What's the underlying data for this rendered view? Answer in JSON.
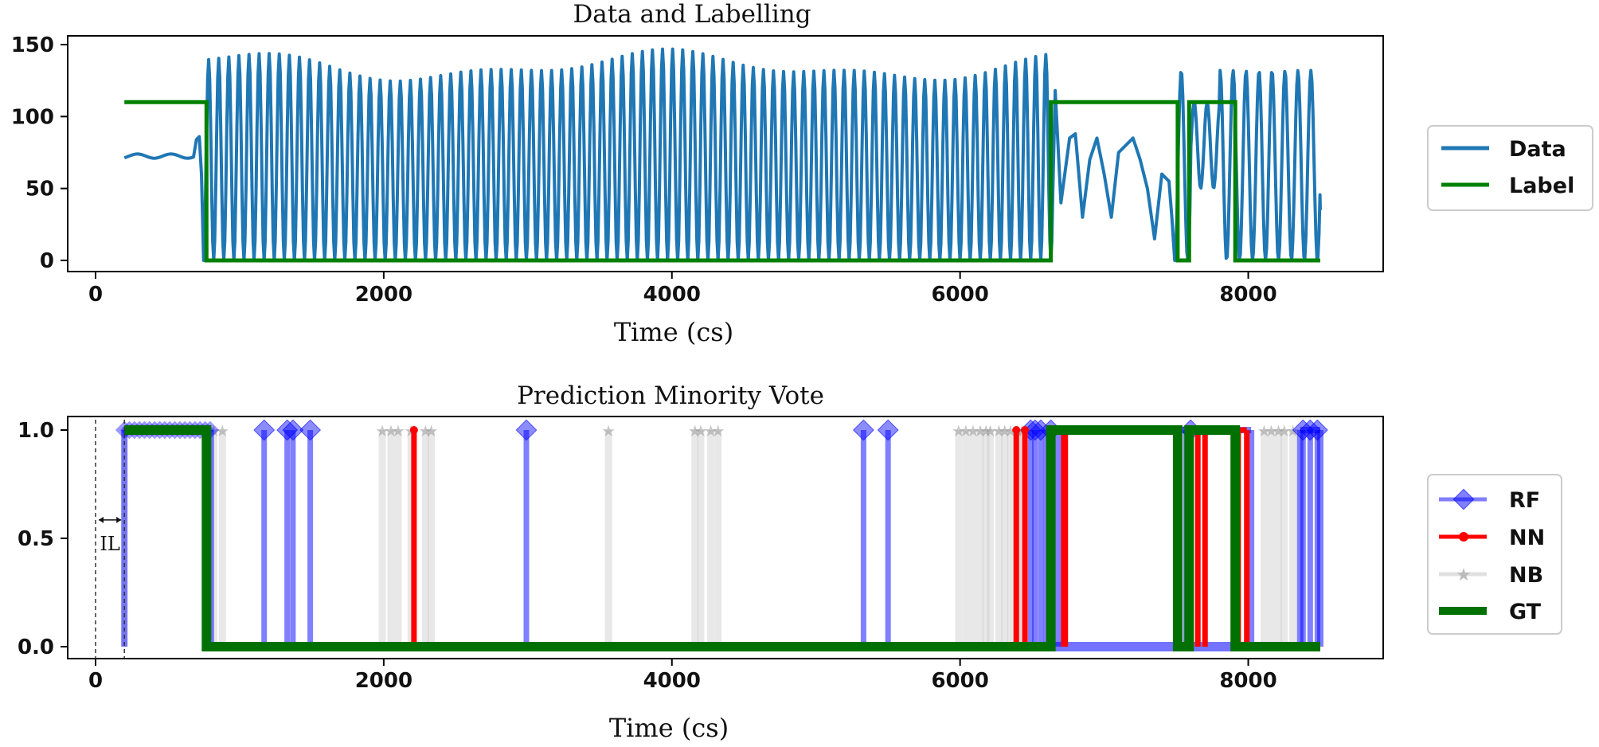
{
  "chart_data": [
    {
      "type": "line",
      "title": "Data and Labelling",
      "xlabel": "Time (cs)",
      "ylabel": "",
      "xlim": [
        -500,
        8800
      ],
      "ylim": [
        -8,
        155
      ],
      "x_ticks": [
        0,
        2000,
        4000,
        6000,
        8000
      ],
      "y_ticks": [
        0,
        50,
        100,
        150
      ],
      "legend_position": "right",
      "series": [
        {
          "name": "Data",
          "color": "#1f77b4",
          "description_points": {
            "flat_segment": {
              "x": [
                200,
                680
              ],
              "y": [
                72,
                75
              ]
            },
            "bump": {
              "x": [
                700,
                720
              ],
              "y": [
                83,
                86
              ]
            },
            "oscillation_1": {
              "x_range": [
                740,
                6700
              ],
              "period": 70,
              "min": 0,
              "max": [
                130,
                148
              ]
            },
            "irregular_segment": {
              "x": [
                6700,
                6760,
                6800,
                6850,
                6900,
                6950,
                7000,
                7050,
                7100,
                7150,
                7200,
                7250,
                7300,
                7350,
                7400,
                7450
              ],
              "y": [
                40,
                85,
                88,
                30,
                70,
                85,
                60,
                30,
                75,
                80,
                85,
                70,
                50,
                15,
                60,
                55
              ]
            },
            "oscillation_2": {
              "x_range": [
                7480,
                8500
              ],
              "period": 90,
              "min": 0,
              "max": 132
            }
          }
        },
        {
          "name": "Label",
          "color": "#008000",
          "x": [
            200,
            770,
            770,
            6630,
            6630,
            7510,
            7510,
            7590,
            7590,
            7910,
            7910,
            8500
          ],
          "y": [
            110,
            110,
            0,
            0,
            110,
            110,
            0,
            0,
            110,
            110,
            0,
            0
          ]
        }
      ]
    },
    {
      "type": "line",
      "title": "Prediction Minority Vote",
      "xlabel": "Time (cs)",
      "ylabel": "",
      "xlim": [
        -500,
        8800
      ],
      "ylim": [
        -0.06,
        1.06
      ],
      "x_ticks": [
        0,
        2000,
        4000,
        6000,
        8000
      ],
      "y_ticks": [
        0.0,
        0.5,
        1.0
      ],
      "y_tick_labels": [
        "0.0",
        "0.5",
        "1.0"
      ],
      "legend_position": "right",
      "annotation": {
        "text": "IL",
        "x_start": 0,
        "x_end": 200,
        "y": 0.53
      },
      "series": [
        {
          "name": "RF",
          "color": "#0000ff",
          "marker": "diamond",
          "spikes_to_one": [
            1170,
            1330,
            1370,
            1490,
            2990,
            5330,
            5500,
            6490,
            6520,
            6560,
            6630,
            7600,
            8380,
            8430,
            8480
          ],
          "one_regions": [
            [
              200,
              800
            ],
            [
              6600,
              6680
            ],
            [
              7510,
              7570
            ],
            [
              7600,
              8020
            ],
            [
              8360,
              8500
            ]
          ]
        },
        {
          "name": "NN",
          "color": "#ff0000",
          "marker": "dot",
          "spikes_to_one": [
            2210,
            6390,
            6450,
            6730,
            7650,
            7700
          ],
          "one_regions": [
            [
              6630,
              6720
            ],
            [
              7930,
              7990
            ]
          ]
        },
        {
          "name": "NB",
          "color": "#cccccc",
          "marker": "star",
          "spikes_to_one": [
            820,
            880,
            1990,
            2050,
            2100,
            2190,
            2290,
            2330,
            3560,
            4160,
            4200,
            4270,
            4320,
            5990,
            6040,
            6090,
            6140,
            6180,
            6210,
            6270,
            6310,
            6350,
            6400,
            6430,
            8110,
            8160,
            8210,
            8250,
            8310
          ],
          "one_regions": [
            [
              200,
              760
            ]
          ]
        },
        {
          "name": "GT",
          "color": "#007000",
          "x": [
            200,
            770,
            770,
            6630,
            6630,
            7510,
            7510,
            7590,
            7590,
            7910,
            7910,
            8500
          ],
          "y": [
            1,
            1,
            0,
            0,
            1,
            1,
            0,
            0,
            1,
            1,
            0,
            0
          ]
        }
      ]
    }
  ]
}
